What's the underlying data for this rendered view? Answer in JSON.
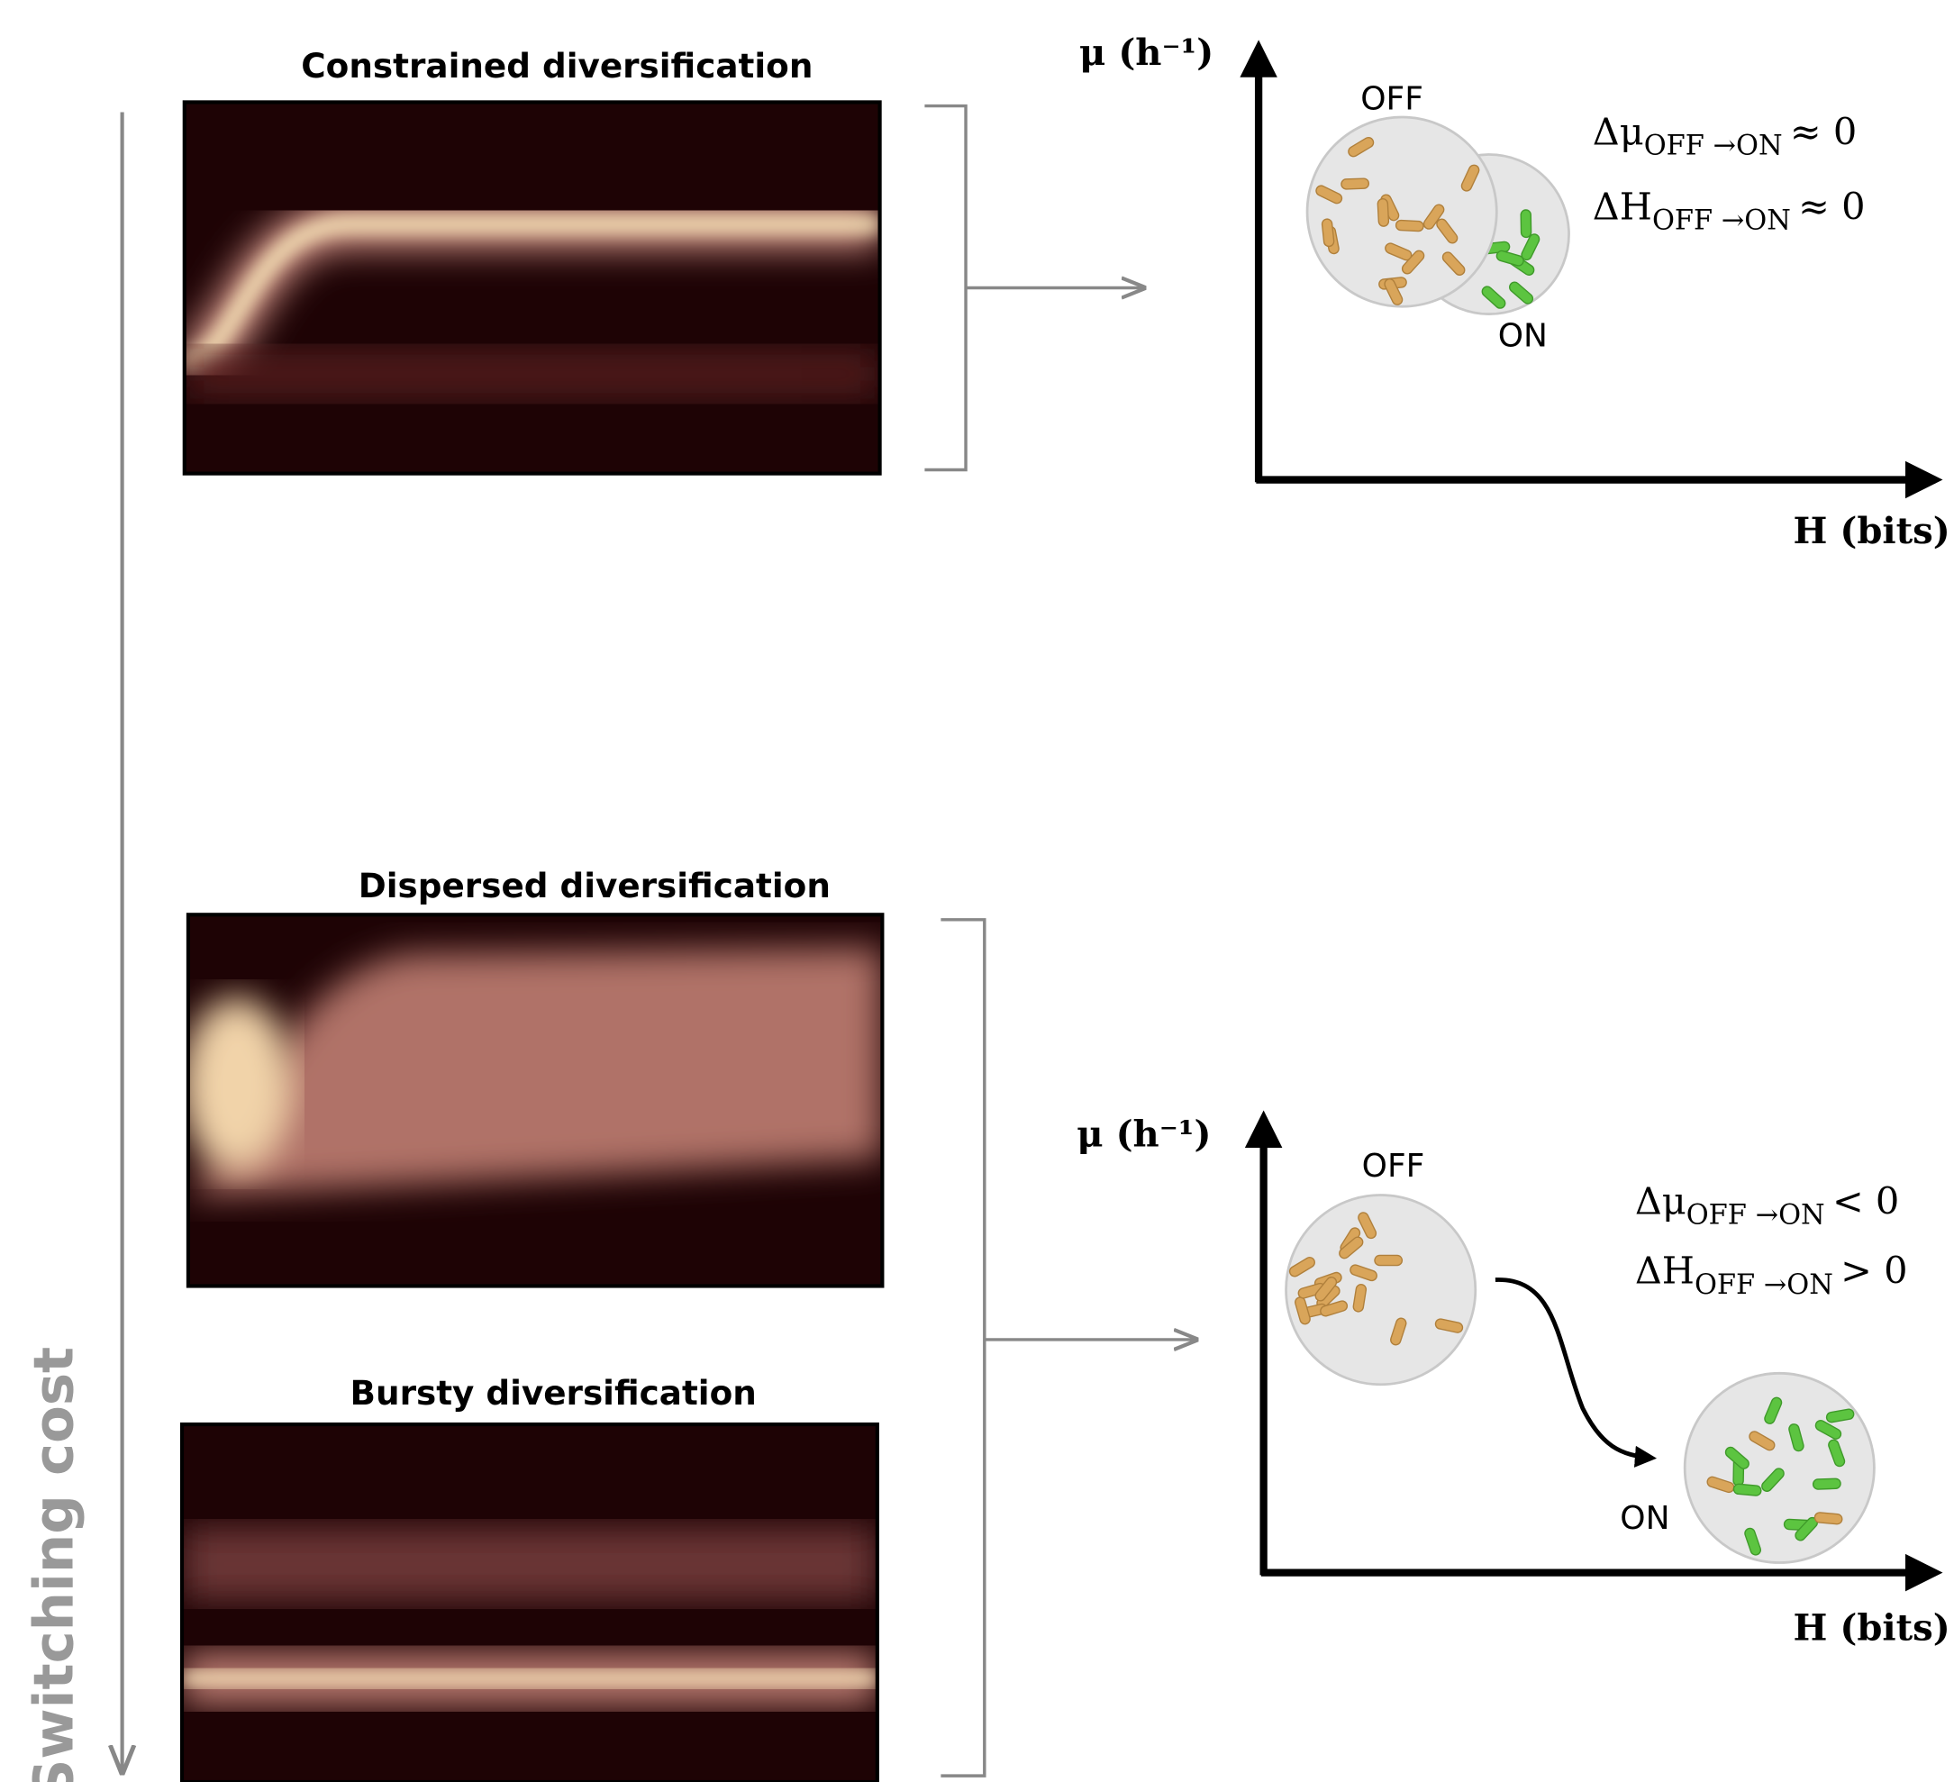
{
  "side_label": "Switching cost",
  "panels": [
    {
      "title": "Constrained diversification"
    },
    {
      "title": "Dispersed diversification"
    },
    {
      "title": "Bursty diversification"
    }
  ],
  "schematics": [
    {
      "y_axis_label": "μ (h⁻¹)",
      "x_axis_label": "H (bits)",
      "off_label": "OFF",
      "on_label": "ON",
      "equations": [
        {
          "symbol": "Δμ",
          "subscript": "OFF →ON",
          "relation": "≈ 0"
        },
        {
          "symbol": "ΔH",
          "subscript": "OFF →ON",
          "relation": "≈ 0"
        }
      ]
    },
    {
      "y_axis_label": "μ (h⁻¹)",
      "x_axis_label": "H (bits)",
      "off_label": "OFF",
      "on_label": "ON",
      "equations": [
        {
          "symbol": "Δμ",
          "subscript": "OFF →ON",
          "relation": "< 0"
        },
        {
          "symbol": "ΔH",
          "subscript": "OFF →ON",
          "relation": "> 0"
        }
      ]
    }
  ]
}
